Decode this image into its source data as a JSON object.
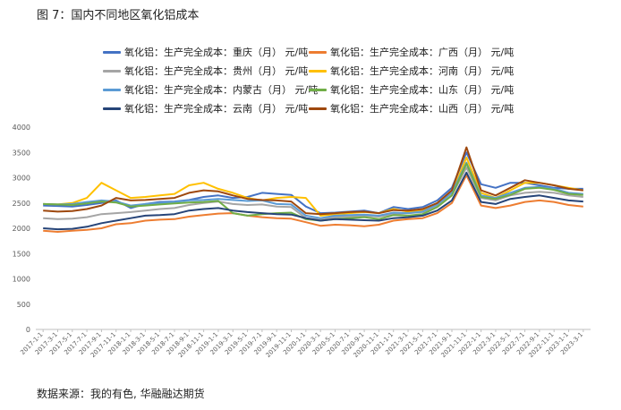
{
  "figure": {
    "title": "图 7：国内不同地区氧化铝成本",
    "source": "数据来源：我的有色, 华融融达期货"
  },
  "chart_data": {
    "type": "line",
    "title": "",
    "xlabel": "",
    "ylabel": "",
    "ylim": [
      0,
      4000
    ],
    "yticks": [
      0,
      500,
      1000,
      1500,
      2000,
      2500,
      3000,
      3500,
      4000
    ],
    "grid": false,
    "legend_position": "top",
    "x": [
      "2017-1-1",
      "2017-3-1",
      "2017-5-1",
      "2017-7-1",
      "2017-9-1",
      "2017-11-1",
      "2018-1-1",
      "2018-3-1",
      "2018-5-1",
      "2018-7-1",
      "2018-9-1",
      "2018-11-1",
      "2019-1-1",
      "2019-3-1",
      "2019-5-1",
      "2019-7-1",
      "2019-9-1",
      "2019-11-1",
      "2020-1-1",
      "2020-3-1",
      "2020-5-1",
      "2020-7-1",
      "2020-9-1",
      "2020-11-1",
      "2021-1-1",
      "2021-3-1",
      "2021-5-1",
      "2021-7-1",
      "2021-9-1",
      "2021-11-1",
      "2022-1-1",
      "2022-3-1",
      "2022-5-1",
      "2022-7-1",
      "2022-9-1",
      "2022-11-1",
      "2023-1-1",
      "2023-3-1"
    ],
    "series": [
      {
        "name": "氧化铝：生产完全成本：重庆（月） 元/吨",
        "color": "#4472c4",
        "values": [
          2450,
          2440,
          2430,
          2460,
          2500,
          2550,
          2400,
          2480,
          2520,
          2530,
          2560,
          2620,
          2650,
          2600,
          2620,
          2700,
          2680,
          2660,
          2430,
          2300,
          2310,
          2330,
          2350,
          2300,
          2420,
          2380,
          2420,
          2550,
          2800,
          3500,
          2870,
          2800,
          2900,
          2900,
          2850,
          2800,
          2780,
          2780
        ]
      },
      {
        "name": "氧化铝：生产完全成本：广西（月） 元/吨",
        "color": "#ed7d31",
        "values": [
          1950,
          1930,
          1950,
          1970,
          2000,
          2080,
          2100,
          2150,
          2170,
          2180,
          2230,
          2260,
          2290,
          2300,
          2250,
          2220,
          2200,
          2190,
          2120,
          2050,
          2070,
          2060,
          2040,
          2070,
          2150,
          2180,
          2200,
          2300,
          2500,
          3050,
          2450,
          2400,
          2450,
          2520,
          2550,
          2520,
          2460,
          2430
        ]
      },
      {
        "name": "氧化铝：生产完全成本：贵州（月） 元/吨",
        "color": "#a5a5a5",
        "values": [
          2200,
          2180,
          2190,
          2220,
          2280,
          2300,
          2320,
          2350,
          2380,
          2400,
          2460,
          2500,
          2530,
          2480,
          2460,
          2470,
          2430,
          2420,
          2200,
          2170,
          2220,
          2230,
          2250,
          2230,
          2280,
          2300,
          2320,
          2450,
          2650,
          3200,
          2600,
          2550,
          2650,
          2700,
          2720,
          2700,
          2650,
          2620
        ]
      },
      {
        "name": "氧化铝：生产完全成本：河南（月） 元/吨",
        "color": "#ffc000",
        "values": [
          2480,
          2470,
          2500,
          2600,
          2900,
          2750,
          2600,
          2620,
          2650,
          2680,
          2850,
          2900,
          2780,
          2700,
          2600,
          2550,
          2600,
          2620,
          2600,
          2250,
          2280,
          2300,
          2320,
          2300,
          2380,
          2330,
          2360,
          2500,
          2700,
          3400,
          2700,
          2600,
          2750,
          2900,
          2900,
          2850,
          2800,
          2750
        ]
      },
      {
        "name": "氧化铝：生产完全成本：内蒙古（月） 元/吨",
        "color": "#5b9bd5",
        "values": [
          2480,
          2470,
          2480,
          2520,
          2550,
          2530,
          2450,
          2480,
          2500,
          2520,
          2550,
          2560,
          2580,
          2560,
          2540,
          2550,
          2480,
          2470,
          2250,
          2200,
          2250,
          2260,
          2270,
          2250,
          2310,
          2300,
          2330,
          2470,
          2700,
          3300,
          2650,
          2600,
          2700,
          2800,
          2820,
          2780,
          2700,
          2680
        ]
      },
      {
        "name": "氧化铝：生产完全成本：山东（月） 元/吨",
        "color": "#70ad47",
        "values": [
          2480,
          2470,
          2460,
          2490,
          2530,
          2510,
          2430,
          2450,
          2470,
          2490,
          2510,
          2520,
          2540,
          2300,
          2250,
          2280,
          2300,
          2310,
          2180,
          2150,
          2180,
          2200,
          2220,
          2180,
          2260,
          2250,
          2280,
          2420,
          2650,
          3280,
          2620,
          2580,
          2660,
          2780,
          2800,
          2760,
          2680,
          2660
        ]
      },
      {
        "name": "氧化铝：生产完全成本：云南（月） 元/吨",
        "color": "#264478",
        "values": [
          2000,
          1980,
          1990,
          2030,
          2100,
          2150,
          2200,
          2250,
          2260,
          2280,
          2350,
          2380,
          2400,
          2350,
          2320,
          2300,
          2280,
          2270,
          2200,
          2150,
          2180,
          2170,
          2160,
          2150,
          2200,
          2220,
          2250,
          2350,
          2550,
          3100,
          2520,
          2480,
          2580,
          2620,
          2650,
          2600,
          2550,
          2530
        ]
      },
      {
        "name": "氧化铝：生产完全成本：山西（月） 元/吨",
        "color": "#9e480e",
        "values": [
          2350,
          2330,
          2340,
          2380,
          2450,
          2600,
          2550,
          2560,
          2580,
          2600,
          2700,
          2750,
          2730,
          2650,
          2580,
          2560,
          2550,
          2530,
          2300,
          2280,
          2300,
          2320,
          2330,
          2300,
          2360,
          2350,
          2380,
          2500,
          2750,
          3600,
          2750,
          2650,
          2800,
          2950,
          2900,
          2850,
          2780,
          2750
        ]
      }
    ]
  }
}
